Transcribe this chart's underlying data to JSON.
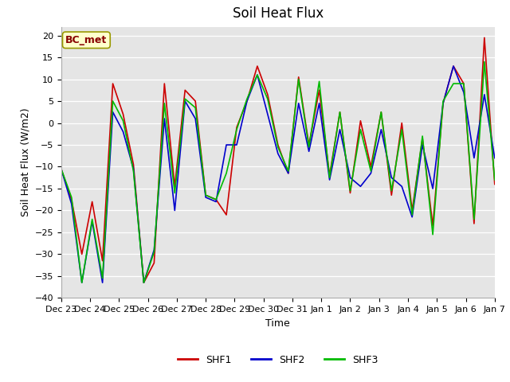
{
  "title": "Soil Heat Flux",
  "ylabel": "Soil Heat Flux (W/m2)",
  "xlabel": "Time",
  "annotation": "BC_met",
  "ylim": [
    -40,
    22
  ],
  "yticks": [
    -40,
    -35,
    -30,
    -25,
    -20,
    -15,
    -10,
    -5,
    0,
    5,
    10,
    15,
    20
  ],
  "tick_labels": [
    "Dec 23",
    "Dec 24",
    "Dec 25",
    "Dec 26",
    "Dec 27",
    "Dec 28",
    "Dec 29",
    "Dec 30",
    "Dec 31",
    "Jan 1",
    "Jan 2",
    "Jan 3",
    "Jan 4",
    "Jan 5",
    "Jan 6",
    "Jan 7"
  ],
  "line_colors": {
    "SHF1": "#cc0000",
    "SHF2": "#0000cc",
    "SHF3": "#00bb00"
  },
  "bg_color": "#e5e5e5",
  "fig_color": "#ffffff",
  "annotation_bg": "#ffffcc",
  "annotation_border": "#999900",
  "annotation_text_color": "#880000",
  "title_fontsize": 12,
  "axis_fontsize": 9,
  "tick_fontsize": 8,
  "linewidth": 1.2,
  "shf1": [
    -10.5,
    -17.5,
    -30.0,
    -18.0,
    -31.5,
    9.0,
    2.0,
    -9.5,
    -36.5,
    -32.0,
    9.0,
    -14.5,
    7.5,
    5.0,
    -16.5,
    -17.5,
    -21.0,
    -1.0,
    5.0,
    13.0,
    6.5,
    -5.0,
    -11.5,
    10.5,
    -5.0,
    7.5,
    -12.0,
    2.5,
    -16.0,
    0.5,
    -10.0,
    2.5,
    -16.5,
    0.0,
    -20.0,
    -3.5,
    -23.5,
    4.5,
    13.0,
    9.0,
    -23.0,
    19.5,
    -14.0
  ],
  "shf2": [
    -10.5,
    -18.5,
    -36.5,
    -22.5,
    -36.5,
    2.5,
    -2.0,
    -10.5,
    -36.5,
    -29.0,
    1.0,
    -20.0,
    5.0,
    1.0,
    -17.0,
    -18.0,
    -5.0,
    -5.0,
    5.0,
    11.0,
    2.0,
    -7.0,
    -11.5,
    4.5,
    -6.5,
    4.5,
    -13.0,
    -1.5,
    -12.5,
    -14.5,
    -11.5,
    -1.5,
    -12.5,
    -14.5,
    -21.5,
    -5.0,
    -15.0,
    4.5,
    13.0,
    7.0,
    -8.0,
    6.5,
    -8.0
  ],
  "shf3": [
    -10.5,
    -17.0,
    -36.5,
    -22.0,
    -35.5,
    5.0,
    0.5,
    -11.0,
    -36.5,
    -29.5,
    4.5,
    -16.0,
    5.5,
    3.5,
    -16.5,
    -17.5,
    -11.5,
    -1.5,
    5.5,
    11.0,
    5.5,
    -5.5,
    -11.0,
    10.0,
    -5.5,
    9.5,
    -12.5,
    2.5,
    -15.5,
    -1.5,
    -11.0,
    2.5,
    -15.5,
    -1.5,
    -21.0,
    -3.0,
    -25.5,
    5.0,
    9.0,
    9.0,
    -22.0,
    14.0,
    -13.0
  ]
}
